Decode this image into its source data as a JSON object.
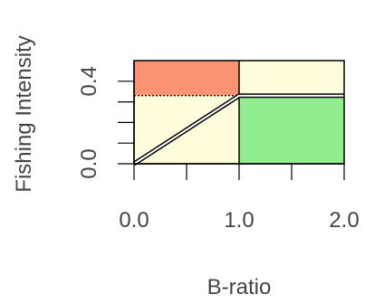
{
  "chart_data": {
    "type": "area",
    "xlabel": "B-ratio",
    "ylabel": "Fishing Intensity",
    "xlim": [
      0,
      2
    ],
    "ylim": [
      0,
      0.5
    ],
    "x_tick_labels": [
      "0.0",
      "1.0",
      "2.0"
    ],
    "x_minor_ticks": [
      0.5,
      1.5
    ],
    "y_tick_labels": [
      "0.0",
      "0.4"
    ],
    "y_minor_ticks": [
      0.1,
      0.2,
      0.3
    ],
    "target_intensity": 0.33,
    "regions": [
      {
        "id": "overfishing-depleted",
        "color": "#FA9373",
        "x": [
          0,
          1
        ],
        "y": [
          0.33,
          0.5
        ]
      },
      {
        "id": "overfishing-healthy",
        "color": "#FFFDDC",
        "x": [
          1,
          2
        ],
        "y": [
          0.33,
          0.5
        ]
      },
      {
        "id": "depleted-not-overfishing",
        "color": "#FFFDDC",
        "x": [
          0,
          1
        ],
        "y": [
          0,
          0.33
        ]
      },
      {
        "id": "healthy-not-overfishing",
        "color": "#90EE90",
        "x": [
          1,
          2
        ],
        "y": [
          0,
          0.33
        ]
      }
    ],
    "control_rule": {
      "x": [
        0,
        1,
        2
      ],
      "y": [
        0,
        0.33,
        0.33
      ]
    },
    "grid": false
  }
}
